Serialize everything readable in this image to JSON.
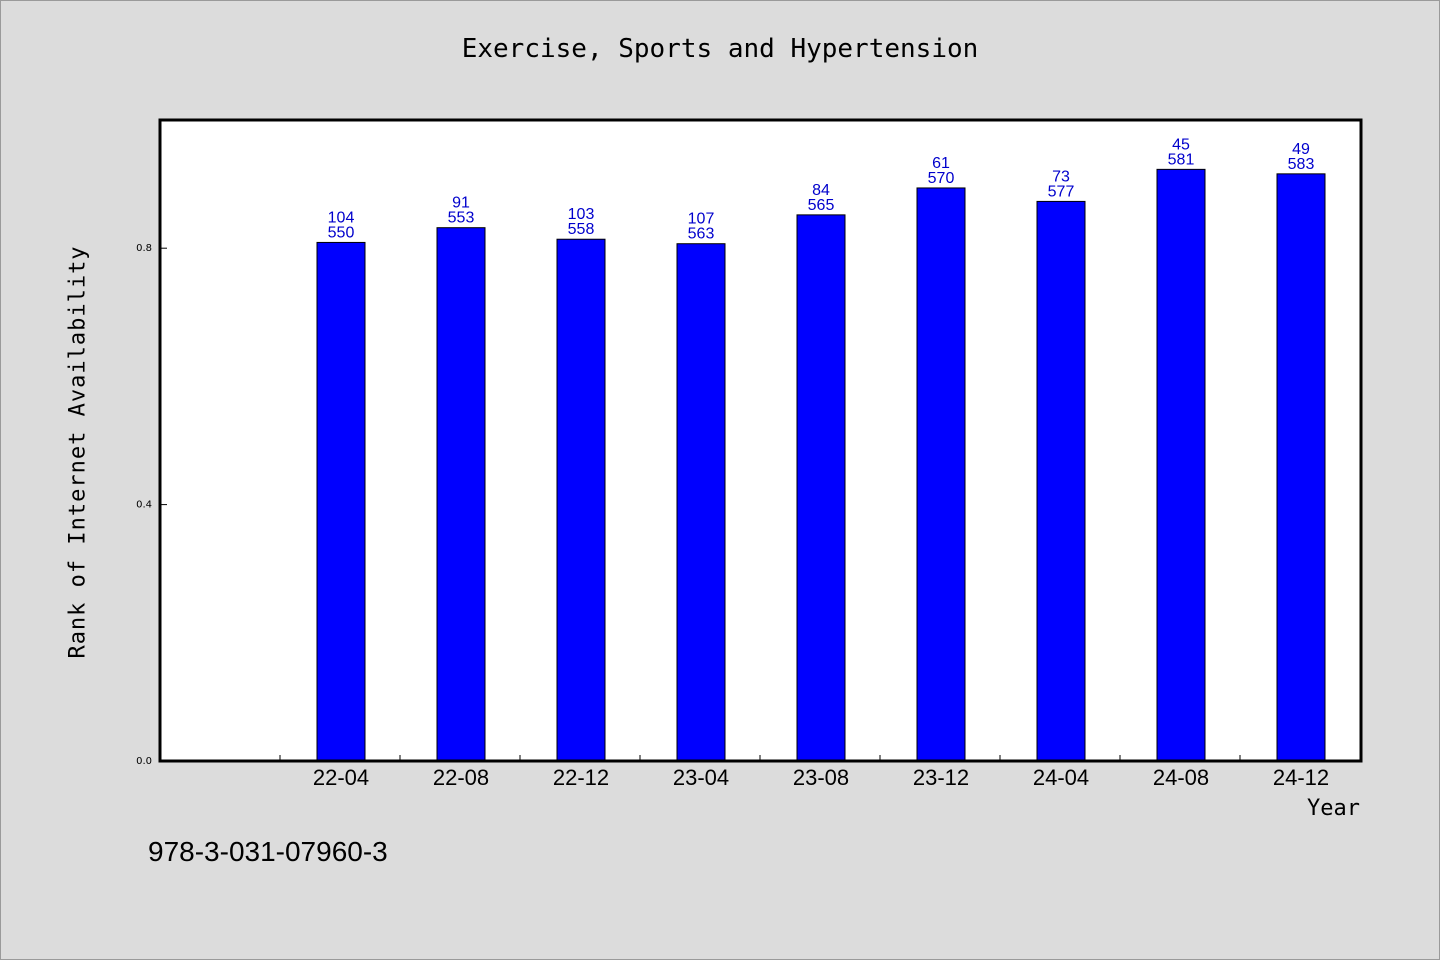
{
  "chart_data": {
    "type": "bar",
    "title": "Exercise, Sports and Hypertension",
    "xlabel": "Year",
    "ylabel": "Rank of Internet Availability",
    "ylim": [
      0,
      1.0
    ],
    "yticks": [
      "0.0",
      "0.4",
      "0.8"
    ],
    "categories": [
      "22-04",
      "22-08",
      "22-12",
      "23-04",
      "23-08",
      "23-12",
      "24-04",
      "24-08",
      "24-12"
    ],
    "series": [
      {
        "values": [
          0.809,
          0.832,
          0.814,
          0.807,
          0.852,
          0.894,
          0.873,
          0.923,
          0.916
        ],
        "label_top": [
          "104",
          "91",
          "103",
          "107",
          "84",
          "61",
          "73",
          "45",
          "49"
        ],
        "label_bottom": [
          "550",
          "553",
          "558",
          "563",
          "565",
          "570",
          "577",
          "581",
          "583"
        ],
        "color": "#0000ff",
        "label_color": "#0000cc"
      }
    ],
    "grid": false,
    "plot_background": "#ffffff",
    "page_background": "#dcdcdc"
  },
  "footer": {
    "isbn": "978-3-031-07960-3"
  }
}
